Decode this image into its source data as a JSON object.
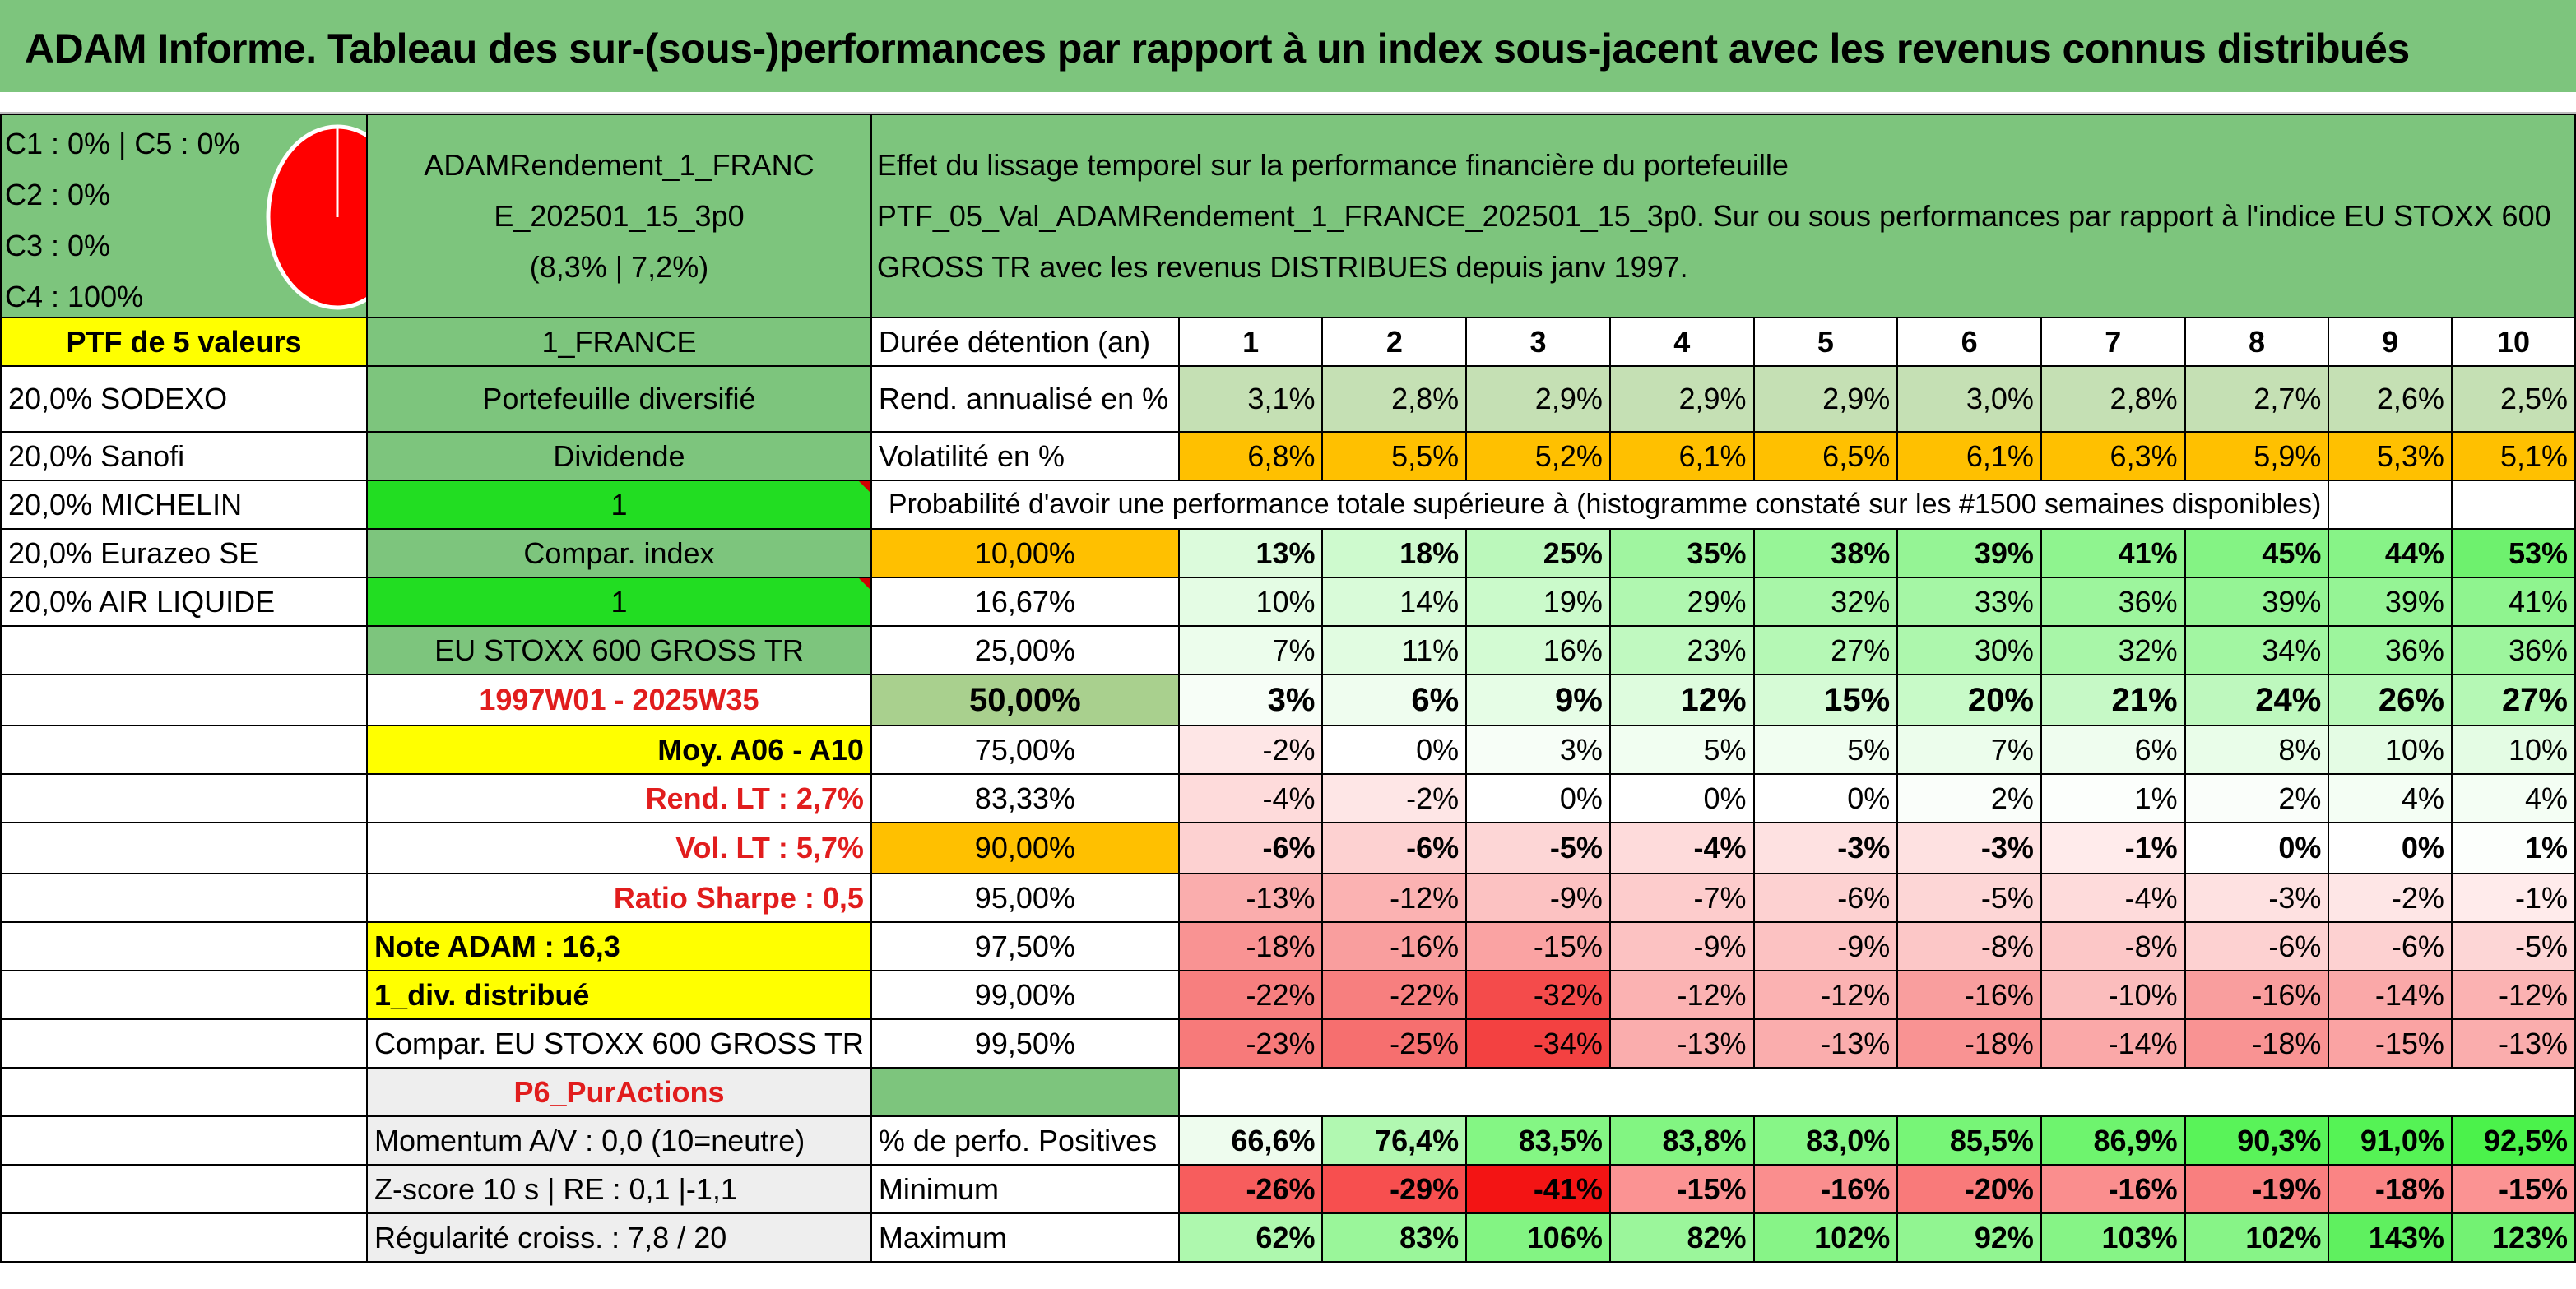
{
  "title": "ADAM Informe. Tableau des sur-(sous-)performances par rapport à un index sous-jacent avec les revenus connus distribués",
  "colors": {
    "header_green": "#7dc57d",
    "yellow": "#ffff00",
    "bright_green": "#22dd22",
    "orange": "#ffc000",
    "pie_red": "#ff0000"
  },
  "allocation": {
    "lines": [
      "C1 : 0% | C5 : 0%",
      "C2 : 0%",
      "C3 : 0%",
      "C4 : 100%"
    ],
    "pie_shares": [
      0,
      0,
      0,
      100,
      0
    ]
  },
  "portfolio": {
    "name_line1": "ADAMRendement_1_FRANC",
    "name_line2": "E_202501_15_3p0",
    "stats": "(8,3% | 7,2%)",
    "effect_text": "Effet du lissage temporel sur la performance financière du portefeuille PTF_05_Val_ADAMRendement_1_FRANCE_202501_15_3p0. Sur ou sous performances par rapport à l'indice EU STOXX 600 GROSS TR avec les revenus DISTRIBUES depuis janv 1997."
  },
  "left": {
    "ptf_count": "PTF de 5 valeurs",
    "holdings": [
      "20,0% SODEXO",
      "20,0% Sanofi",
      "20,0% MICHELIN",
      "20,0% Eurazeo SE",
      "20,0% AIR LIQUIDE"
    ]
  },
  "mid": {
    "country": "1_FRANCE",
    "type": "Portefeuille diversifié",
    "dividend_label": "Dividende",
    "dividend_value": "1",
    "compar_label": "Compar. index",
    "compar_value": "1",
    "index_name": "EU STOXX 600 GROSS TR",
    "period": "1997W01 - 2025W35",
    "moy": "Moy. A06 - A10",
    "rend_lt": "Rend. LT : 2,7%",
    "vol_lt": "Vol. LT : 5,7%",
    "sharpe": "Ratio Sharpe : 0,5",
    "note": "Note ADAM : 16,3",
    "div": "1_div. distribué",
    "compar_full": "Compar. EU STOXX 600 GROSS TR",
    "p6": "P6_PurActions",
    "momentum": "Momentum A/V : 0,0 (10=neutre)",
    "zscore": "Z-score 10 s | RE : 0,1 |-1,1",
    "regularite": "Régularité croiss. : 7,8 / 20"
  },
  "table": {
    "duration_label": "Durée détention (an)",
    "years": [
      "1",
      "2",
      "3",
      "4",
      "5",
      "6",
      "7",
      "8",
      "9",
      "10"
    ],
    "rend_label": "Rend. annualisé en %",
    "rend": [
      "3,1%",
      "2,8%",
      "2,9%",
      "2,9%",
      "2,9%",
      "3,0%",
      "2,8%",
      "2,7%",
      "2,6%",
      "2,5%"
    ],
    "vol_label": "Volatilité en %",
    "vol": [
      "6,8%",
      "5,5%",
      "5,2%",
      "6,1%",
      "6,5%",
      "6,1%",
      "6,3%",
      "5,9%",
      "5,3%",
      "5,1%"
    ],
    "prob_label": "Probabilité d'avoir une performance totale supérieure à (histogramme constaté sur les #1500 semaines disponibles)",
    "prob_rows": [
      {
        "level": "10,00%",
        "values": [
          "13%",
          "18%",
          "25%",
          "35%",
          "38%",
          "39%",
          "41%",
          "45%",
          "44%",
          "53%"
        ]
      },
      {
        "level": "16,67%",
        "values": [
          "10%",
          "14%",
          "19%",
          "29%",
          "32%",
          "33%",
          "36%",
          "39%",
          "39%",
          "41%"
        ]
      },
      {
        "level": "25,00%",
        "values": [
          "7%",
          "11%",
          "16%",
          "23%",
          "27%",
          "30%",
          "32%",
          "34%",
          "36%",
          "36%"
        ]
      },
      {
        "level": "50,00%",
        "values": [
          "3%",
          "6%",
          "9%",
          "12%",
          "15%",
          "20%",
          "21%",
          "24%",
          "26%",
          "27%"
        ]
      },
      {
        "level": "75,00%",
        "values": [
          "-2%",
          "0%",
          "3%",
          "5%",
          "5%",
          "7%",
          "6%",
          "8%",
          "10%",
          "10%"
        ]
      },
      {
        "level": "83,33%",
        "values": [
          "-4%",
          "-2%",
          "0%",
          "0%",
          "0%",
          "2%",
          "1%",
          "2%",
          "4%",
          "4%"
        ]
      },
      {
        "level": "90,00%",
        "values": [
          "-6%",
          "-6%",
          "-5%",
          "-4%",
          "-3%",
          "-3%",
          "-1%",
          "0%",
          "0%",
          "1%"
        ]
      },
      {
        "level": "95,00%",
        "values": [
          "-13%",
          "-12%",
          "-9%",
          "-7%",
          "-6%",
          "-5%",
          "-4%",
          "-3%",
          "-2%",
          "-1%"
        ]
      },
      {
        "level": "97,50%",
        "values": [
          "-18%",
          "-16%",
          "-15%",
          "-9%",
          "-9%",
          "-8%",
          "-8%",
          "-6%",
          "-6%",
          "-5%"
        ]
      },
      {
        "level": "99,00%",
        "values": [
          "-22%",
          "-22%",
          "-32%",
          "-12%",
          "-12%",
          "-16%",
          "-10%",
          "-16%",
          "-14%",
          "-12%"
        ]
      },
      {
        "level": "99,50%",
        "values": [
          "-23%",
          "-25%",
          "-34%",
          "-13%",
          "-13%",
          "-18%",
          "-14%",
          "-18%",
          "-15%",
          "-13%"
        ]
      }
    ],
    "pos_label": "% de perfo. Positives",
    "pos": [
      "66,6%",
      "76,4%",
      "83,5%",
      "83,8%",
      "83,0%",
      "85,5%",
      "86,9%",
      "90,3%",
      "91,0%",
      "92,5%"
    ],
    "min_label": "Minimum",
    "min": [
      "-26%",
      "-29%",
      "-41%",
      "-15%",
      "-16%",
      "-20%",
      "-16%",
      "-19%",
      "-18%",
      "-15%"
    ],
    "max_label": "Maximum",
    "max": [
      "62%",
      "83%",
      "106%",
      "82%",
      "102%",
      "92%",
      "103%",
      "102%",
      "143%",
      "123%"
    ]
  }
}
